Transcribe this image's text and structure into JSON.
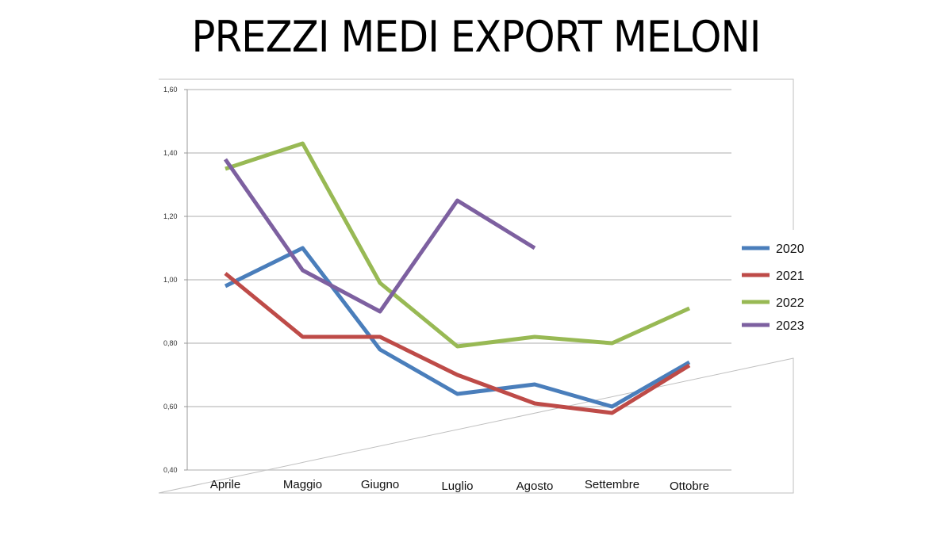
{
  "title": "PREZZI MEDI EXPORT MELONI",
  "chart_data": {
    "type": "line",
    "title": "PREZZI MEDI EXPORT MELONI",
    "xlabel": "",
    "ylabel": "",
    "categories": [
      "Aprile",
      "Maggio",
      "Giugno",
      "Luglio",
      "Agosto",
      "Settembre",
      "Ottobre"
    ],
    "ylim": [
      0.4,
      1.6
    ],
    "yticks": [
      "0,40",
      "0,60",
      "0,80",
      "1,00",
      "1,20",
      "1,40",
      "1,60"
    ],
    "grid": "horizontal",
    "legend_position": "right",
    "series": [
      {
        "name": "2020",
        "color": "#4a7ebb",
        "values": [
          0.98,
          1.1,
          0.78,
          0.64,
          0.67,
          0.6,
          0.74
        ]
      },
      {
        "name": "2021",
        "color": "#be4b48",
        "values": [
          1.02,
          0.82,
          0.82,
          0.7,
          0.61,
          0.58,
          0.73
        ]
      },
      {
        "name": "2022",
        "color": "#98b954",
        "values": [
          1.35,
          1.43,
          0.99,
          0.79,
          0.82,
          0.8,
          0.91
        ]
      },
      {
        "name": "2023",
        "color": "#7d60a0",
        "values": [
          1.38,
          1.03,
          0.9,
          1.25,
          1.1,
          null,
          null
        ]
      }
    ]
  }
}
